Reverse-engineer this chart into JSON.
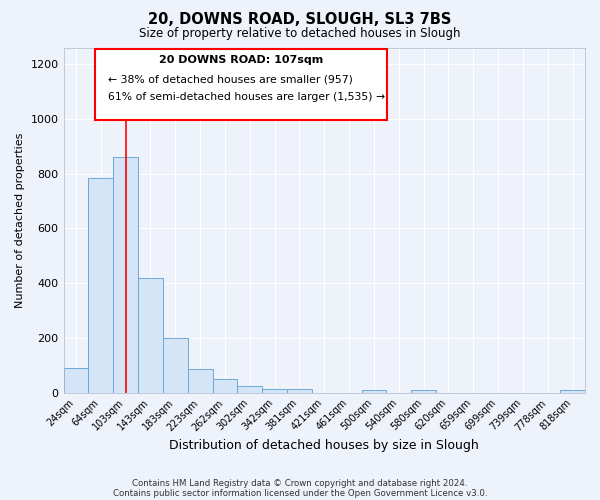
{
  "title1": "20, DOWNS ROAD, SLOUGH, SL3 7BS",
  "title2": "Size of property relative to detached houses in Slough",
  "xlabel": "Distribution of detached houses by size in Slough",
  "ylabel": "Number of detached properties",
  "bar_labels": [
    "24sqm",
    "64sqm",
    "103sqm",
    "143sqm",
    "183sqm",
    "223sqm",
    "262sqm",
    "302sqm",
    "342sqm",
    "381sqm",
    "421sqm",
    "461sqm",
    "500sqm",
    "540sqm",
    "580sqm",
    "620sqm",
    "659sqm",
    "699sqm",
    "739sqm",
    "778sqm",
    "818sqm"
  ],
  "bar_values": [
    90,
    785,
    862,
    418,
    200,
    85,
    52,
    23,
    12,
    12,
    0,
    0,
    10,
    0,
    10,
    0,
    0,
    0,
    0,
    0,
    10
  ],
  "bar_color": "#d6e4f7",
  "bar_edge_color": "#6aaad4",
  "red_line_x": 2,
  "annotation_title": "20 DOWNS ROAD: 107sqm",
  "annotation_line1": "← 38% of detached houses are smaller (957)",
  "annotation_line2": "61% of semi-detached houses are larger (1,535) →",
  "ylim": [
    0,
    1260
  ],
  "yticks": [
    0,
    200,
    400,
    600,
    800,
    1000,
    1200
  ],
  "footer1": "Contains HM Land Registry data © Crown copyright and database right 2024.",
  "footer2": "Contains public sector information licensed under the Open Government Licence v3.0.",
  "background_color": "#eef2fb",
  "plot_background": "#eef2fb",
  "grid_color": "#ffffff"
}
